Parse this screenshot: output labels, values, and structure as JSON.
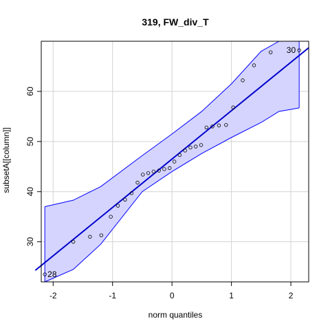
{
  "chart_data": {
    "type": "scatter",
    "title": "319, FW_div_T",
    "xlabel": "norm quantiles",
    "ylabel": "subsetA[[column]]",
    "xlim": [
      -2.2,
      2.3
    ],
    "ylim": [
      22,
      70
    ],
    "x_ticks": [
      -2,
      -1,
      0,
      1,
      2
    ],
    "x_tick_labels": [
      "-2",
      "-1",
      "0",
      "1",
      "2"
    ],
    "y_ticks": [
      30,
      40,
      50,
      60
    ],
    "y_tick_labels": [
      "30",
      "40",
      "50",
      "60"
    ],
    "grid": true,
    "points": [
      {
        "x": -2.14,
        "y": 23.5
      },
      {
        "x": -1.66,
        "y": 30.0
      },
      {
        "x": -1.38,
        "y": 31.0
      },
      {
        "x": -1.19,
        "y": 31.3
      },
      {
        "x": -1.03,
        "y": 35.0
      },
      {
        "x": -0.91,
        "y": 37.2
      },
      {
        "x": -0.79,
        "y": 38.4
      },
      {
        "x": -0.68,
        "y": 39.7
      },
      {
        "x": -0.58,
        "y": 41.8
      },
      {
        "x": -0.49,
        "y": 43.4
      },
      {
        "x": -0.4,
        "y": 43.7
      },
      {
        "x": -0.31,
        "y": 44.0
      },
      {
        "x": -0.22,
        "y": 44.2
      },
      {
        "x": -0.13,
        "y": 44.5
      },
      {
        "x": -0.04,
        "y": 44.7
      },
      {
        "x": 0.04,
        "y": 46.0
      },
      {
        "x": 0.13,
        "y": 47.3
      },
      {
        "x": 0.22,
        "y": 48.2
      },
      {
        "x": 0.31,
        "y": 48.8
      },
      {
        "x": 0.4,
        "y": 49.0
      },
      {
        "x": 0.49,
        "y": 49.3
      },
      {
        "x": 0.58,
        "y": 52.8
      },
      {
        "x": 0.68,
        "y": 53.0
      },
      {
        "x": 0.79,
        "y": 53.2
      },
      {
        "x": 0.91,
        "y": 53.3
      },
      {
        "x": 1.03,
        "y": 56.8
      },
      {
        "x": 1.19,
        "y": 62.2
      },
      {
        "x": 1.38,
        "y": 65.2
      },
      {
        "x": 1.66,
        "y": 67.8
      },
      {
        "x": 2.14,
        "y": 68.2
      }
    ],
    "point_labels": [
      {
        "text": "28",
        "x": -2.14,
        "y": 23.5,
        "anchor": "start"
      },
      {
        "text": "30",
        "x": 2.14,
        "y": 68.2,
        "anchor": "end"
      }
    ],
    "reference_line": {
      "x": [
        -2.3,
        2.3
      ],
      "y": [
        24.3,
        68.7
      ]
    },
    "confidence_band": {
      "x": [
        -2.14,
        -1.66,
        -1.2,
        -0.5,
        0.0,
        0.5,
        1.0,
        1.5,
        1.8,
        2.14
      ],
      "upper": [
        37.0,
        38.3,
        41.0,
        47.2,
        51.5,
        56.0,
        61.5,
        68.0,
        71.5,
        76.0
      ],
      "lower": [
        16.0,
        24.5,
        29.5,
        40.0,
        44.0,
        47.6,
        50.8,
        53.8,
        56.0,
        56.7
      ]
    },
    "colors": {
      "band_fill": "#d4d4ff",
      "band_stroke": "#0000ff",
      "line": "#0000cc",
      "points": "#000000",
      "grid": "#d3d3d3",
      "frame": "#000000"
    }
  }
}
